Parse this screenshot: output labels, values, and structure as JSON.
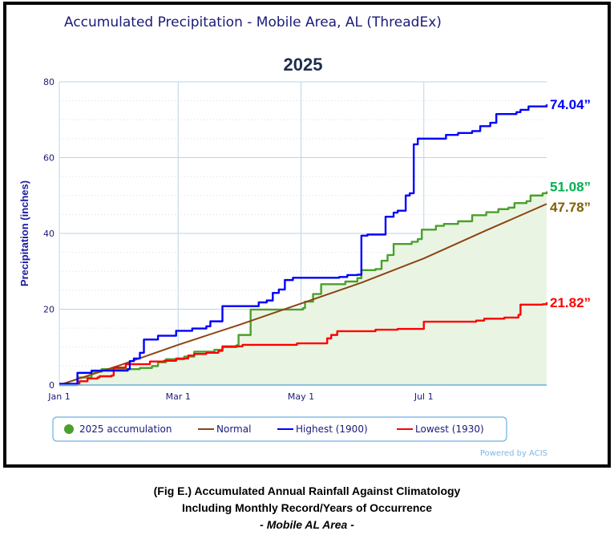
{
  "chart_data": {
    "type": "line",
    "title": "Accumulated Precipitation - Mobile Area, AL (ThreadEx)",
    "subtitle": "2025",
    "xlabel": "",
    "ylabel": "Precipitation (inches)",
    "ylim": [
      0,
      80
    ],
    "xlim_days": [
      0,
      242
    ],
    "yticks": [
      "0",
      "20",
      "40",
      "60",
      "80"
    ],
    "xticks": [
      {
        "label": "Jan 1",
        "day": 0
      },
      {
        "label": "Mar 1",
        "day": 59
      },
      {
        "label": "May 1",
        "day": 120
      },
      {
        "label": "Jul 1",
        "day": 181
      }
    ],
    "grid": true,
    "legend_position": "bottom",
    "credit": "Powered by ACIS",
    "series": [
      {
        "name": "2025 accumulation",
        "color": "#4aa02c",
        "fill": "#eaf4e3",
        "style": "step-area",
        "end_label": "51.08”",
        "end_label_color": "#00b050",
        "points": [
          [
            0,
            0
          ],
          [
            9,
            2
          ],
          [
            16,
            3.5
          ],
          [
            21,
            4.2
          ],
          [
            40,
            4.5
          ],
          [
            46,
            5
          ],
          [
            49,
            6
          ],
          [
            53,
            6.8
          ],
          [
            62,
            7.5
          ],
          [
            67,
            8.8
          ],
          [
            77,
            9.3
          ],
          [
            81,
            10
          ],
          [
            88,
            10.5
          ],
          [
            89,
            13.2
          ],
          [
            95,
            19.9
          ],
          [
            121,
            20.3
          ],
          [
            122,
            22
          ],
          [
            126,
            24
          ],
          [
            130,
            26.6
          ],
          [
            142,
            27.3
          ],
          [
            148,
            28.2
          ],
          [
            150,
            30.3
          ],
          [
            157,
            30.6
          ],
          [
            160,
            32.8
          ],
          [
            163,
            34.3
          ],
          [
            166,
            37.2
          ],
          [
            175,
            37.8
          ],
          [
            178,
            38.5
          ],
          [
            180,
            41
          ],
          [
            187,
            42
          ],
          [
            191,
            42.5
          ],
          [
            198,
            43.2
          ],
          [
            205,
            44.8
          ],
          [
            212,
            45.6
          ],
          [
            218,
            46.4
          ],
          [
            223,
            46.8
          ],
          [
            226,
            48
          ],
          [
            232,
            48.5
          ],
          [
            234,
            50
          ],
          [
            240,
            50.6
          ],
          [
            242,
            51.08
          ]
        ]
      },
      {
        "name": "Normal",
        "color": "#8b4513",
        "style": "line",
        "end_label": "47.78”",
        "end_label_color": "#7f6000",
        "points": [
          [
            0,
            0
          ],
          [
            30,
            5.2
          ],
          [
            59,
            10.6
          ],
          [
            90,
            16
          ],
          [
            120,
            21.5
          ],
          [
            150,
            27
          ],
          [
            181,
            33.4
          ],
          [
            212,
            40.8
          ],
          [
            242,
            47.78
          ]
        ]
      },
      {
        "name": "Highest (1900)",
        "color": "#0000ff",
        "style": "step",
        "end_label": "74.04”",
        "end_label_color": "#0000ff",
        "points": [
          [
            0,
            0.3
          ],
          [
            9,
            3.2
          ],
          [
            16,
            3.8
          ],
          [
            34,
            4.2
          ],
          [
            35,
            6.3
          ],
          [
            37,
            7
          ],
          [
            40,
            8.5
          ],
          [
            42,
            12
          ],
          [
            49,
            13
          ],
          [
            58,
            14.3
          ],
          [
            66,
            14.9
          ],
          [
            73,
            15.5
          ],
          [
            75,
            16.8
          ],
          [
            81,
            20.8
          ],
          [
            99,
            21.8
          ],
          [
            103,
            22.3
          ],
          [
            106,
            24.3
          ],
          [
            109,
            25.2
          ],
          [
            112,
            27.7
          ],
          [
            116,
            28.3
          ],
          [
            139,
            28.5
          ],
          [
            143,
            29
          ],
          [
            148,
            29.1
          ],
          [
            150,
            39.4
          ],
          [
            153,
            39.7
          ],
          [
            162,
            44.4
          ],
          [
            166,
            45.5
          ],
          [
            168,
            46
          ],
          [
            172,
            50
          ],
          [
            174,
            50.6
          ],
          [
            176,
            63.5
          ],
          [
            178,
            65
          ],
          [
            192,
            66
          ],
          [
            198,
            66.5
          ],
          [
            205,
            67
          ],
          [
            209,
            68.3
          ],
          [
            214,
            69.2
          ],
          [
            217,
            71.5
          ],
          [
            227,
            72
          ],
          [
            229,
            72.6
          ],
          [
            233,
            73.5
          ],
          [
            242,
            74.04
          ]
        ]
      },
      {
        "name": "Lowest (1930)",
        "color": "#ff0000",
        "style": "step",
        "end_label": "21.82”",
        "end_label_color": "#ff0000",
        "points": [
          [
            0,
            0.3
          ],
          [
            10,
            1
          ],
          [
            14,
            1.7
          ],
          [
            19,
            2
          ],
          [
            20,
            2.3
          ],
          [
            26,
            2.5
          ],
          [
            27,
            4.6
          ],
          [
            33,
            5.5
          ],
          [
            45,
            6.2
          ],
          [
            52,
            6.4
          ],
          [
            58,
            7
          ],
          [
            64,
            7.8
          ],
          [
            67,
            8.2
          ],
          [
            73,
            8.5
          ],
          [
            79,
            9
          ],
          [
            81,
            10.2
          ],
          [
            91,
            10.6
          ],
          [
            118,
            11
          ],
          [
            130,
            11
          ],
          [
            133,
            12.3
          ],
          [
            135,
            13.2
          ],
          [
            138,
            14.2
          ],
          [
            157,
            14.6
          ],
          [
            168,
            14.8
          ],
          [
            180,
            14.8
          ],
          [
            181,
            16.7
          ],
          [
            207,
            17
          ],
          [
            211,
            17.5
          ],
          [
            221,
            17.8
          ],
          [
            228,
            18.5
          ],
          [
            229,
            21.2
          ],
          [
            240,
            21.3
          ],
          [
            242,
            21.82
          ]
        ]
      }
    ]
  },
  "caption": {
    "line1": "(Fig E.) Accumulated Annual Rainfall Against  Climatology",
    "line2": "Including Monthly Record/Years of Occurrence",
    "line3": "- Mobile AL Area -"
  }
}
